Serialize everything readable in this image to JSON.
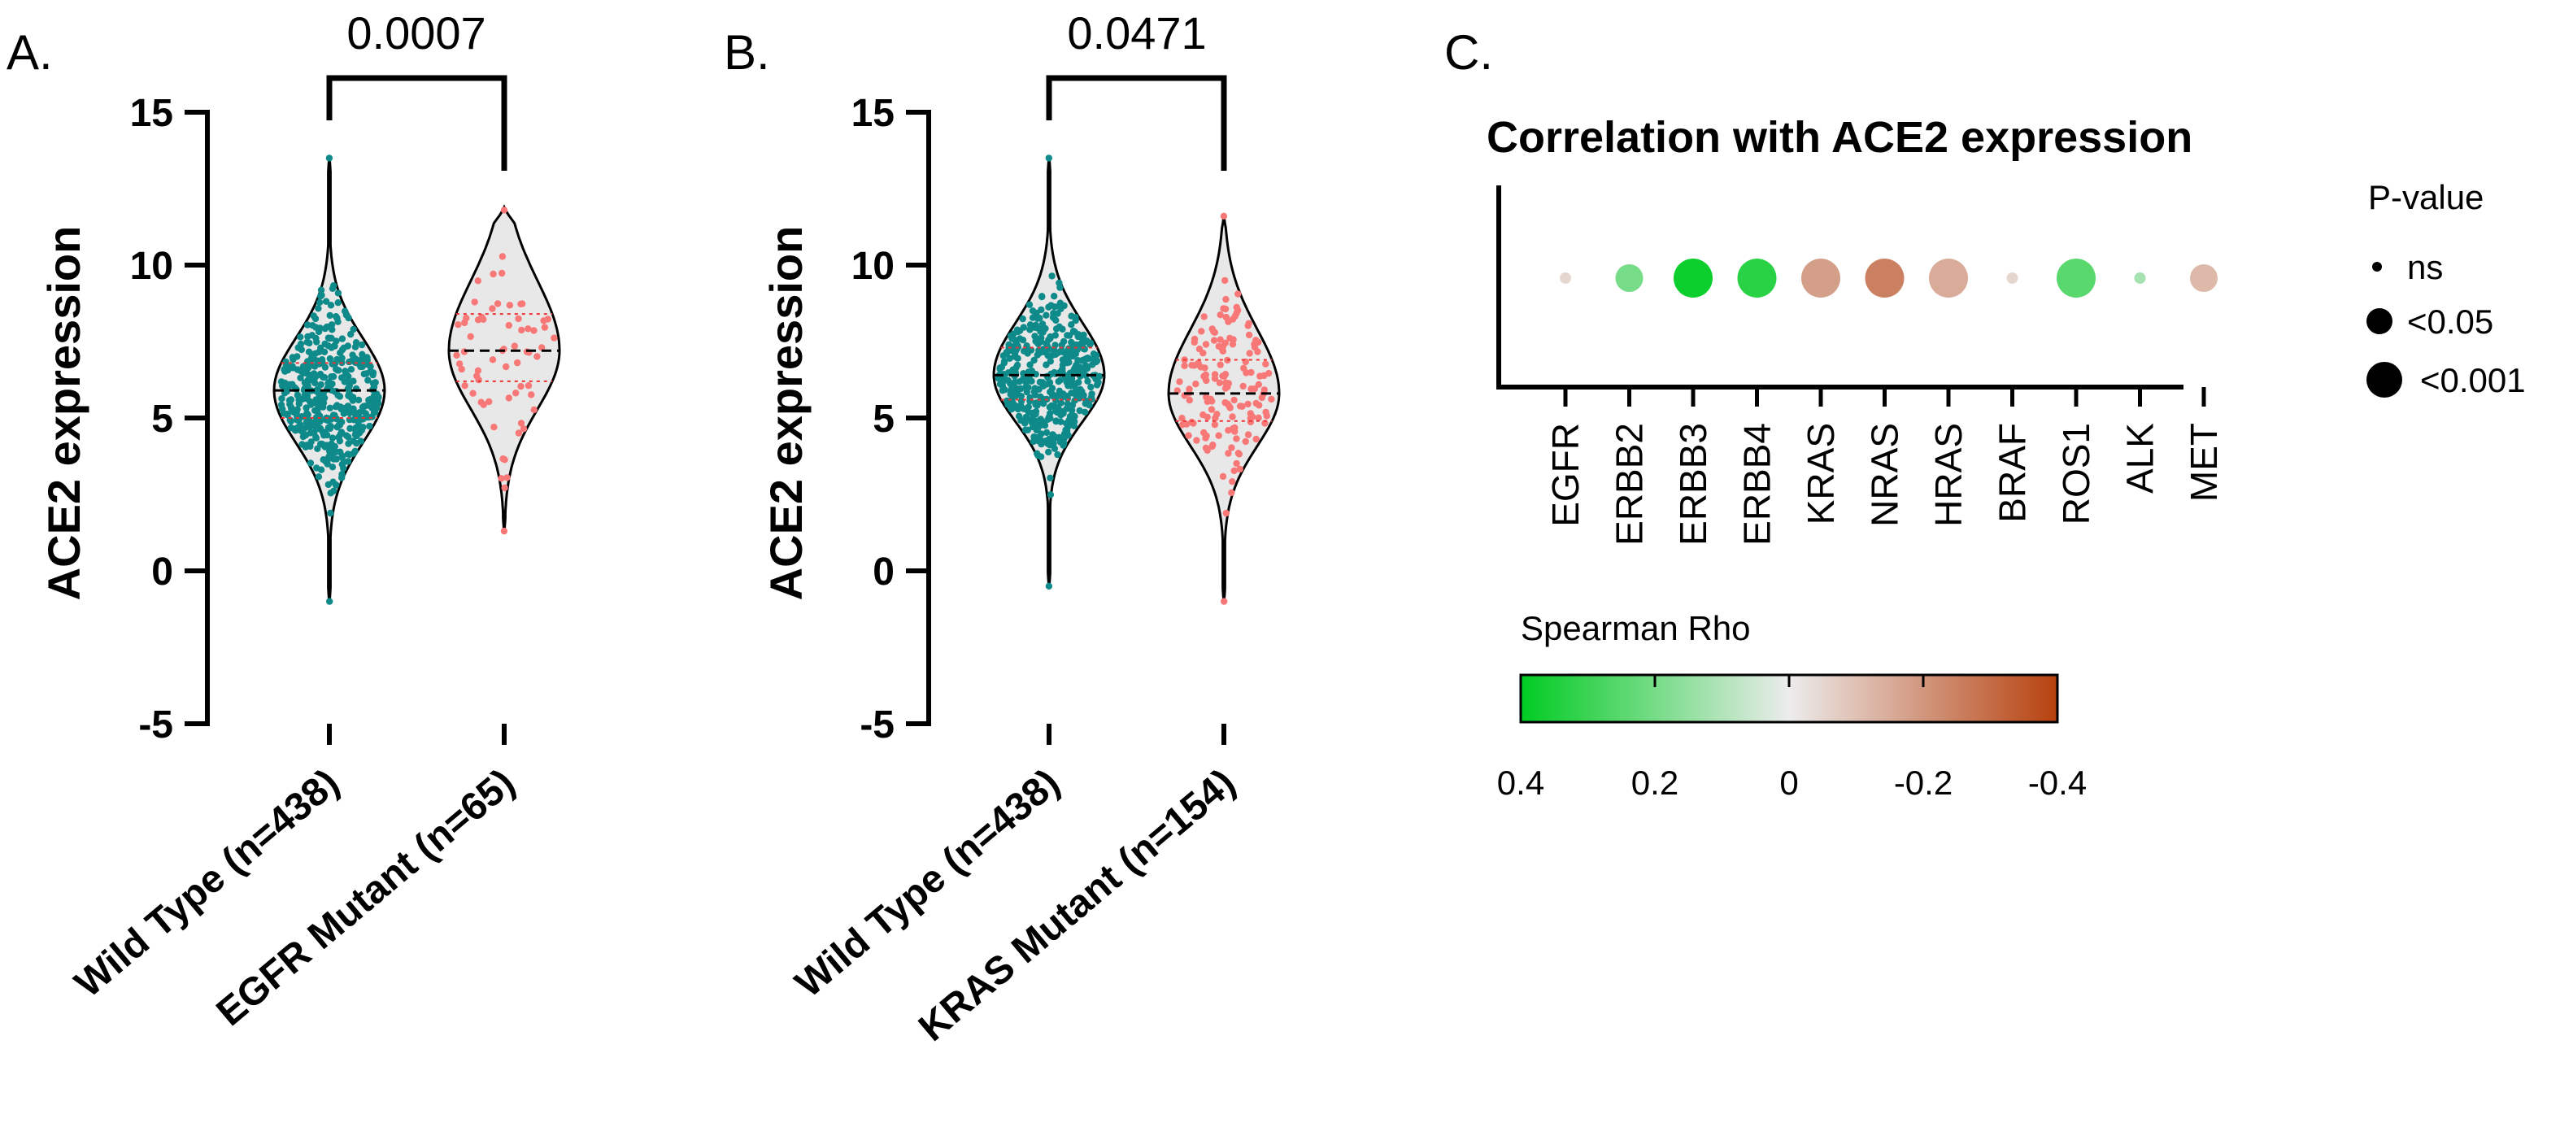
{
  "chart_data": [
    {
      "panel": "A.",
      "type": "violin",
      "ylabel": "ACE2 expression",
      "ylim": [
        -5,
        15
      ],
      "yticks": [
        15,
        10,
        5,
        0,
        -5
      ],
      "ytick_labels": [
        "15",
        "10",
        "5",
        "0",
        "-5"
      ],
      "categories": [
        "Wild Type (n=438)",
        "EGFR Mutant (n=65)"
      ],
      "groups": [
        {
          "name": "Wild Type (n=438)",
          "n": 438,
          "median": 5.9,
          "q1": 5.0,
          "q3": 6.8,
          "min": -1.1,
          "max": 13.6,
          "color": "#0e8a8a"
        },
        {
          "name": "EGFR Mutant (n=65)",
          "n": 65,
          "median": 7.2,
          "q1": 6.2,
          "q3": 8.4,
          "min": 1.2,
          "max": 11.9,
          "color": "#f87878"
        }
      ],
      "comparison_p": "0.0007"
    },
    {
      "panel": "B.",
      "type": "violin",
      "ylabel": "ACE2 expression",
      "ylim": [
        -5,
        15
      ],
      "yticks": [
        15,
        10,
        5,
        0,
        -5
      ],
      "ytick_labels": [
        "15",
        "10",
        "5",
        "0",
        "-5"
      ],
      "categories": [
        "Wild Type (n=438)",
        "KRAS Mutant (n=154)"
      ],
      "groups": [
        {
          "name": "Wild Type (n=438)",
          "n": 438,
          "median": 6.4,
          "q1": 5.6,
          "q3": 7.3,
          "min": -0.6,
          "max": 13.6,
          "color": "#0e8a8a"
        },
        {
          "name": "KRAS Mutant (n=154)",
          "n": 154,
          "median": 5.8,
          "q1": 4.9,
          "q3": 6.9,
          "min": -1.1,
          "max": 11.7,
          "color": "#f87878"
        }
      ],
      "comparison_p": "0.0471"
    },
    {
      "panel": "C.",
      "type": "bubble",
      "title": "Correlation with ACE2 expression",
      "genes": [
        "EGFR",
        "ERBB2",
        "ERBB3",
        "ERBB4",
        "KRAS",
        "NRAS",
        "HRAS",
        "BRAF",
        "ROS1",
        "ALK",
        "MET"
      ],
      "rho": [
        -0.05,
        0.2,
        0.38,
        0.33,
        -0.18,
        -0.25,
        -0.15,
        -0.05,
        0.25,
        0.12,
        -0.12
      ],
      "pvalue_class": [
        "ns",
        "<0.05",
        "<0.001",
        "<0.001",
        "<0.001",
        "<0.001",
        "<0.001",
        "ns",
        "<0.001",
        "ns",
        "<0.05"
      ],
      "size_legend": {
        "title": "P-value",
        "entries": [
          "ns",
          "<0.05",
          "<0.001"
        ]
      },
      "colorbar": {
        "title": "Spearman Rho",
        "range": [
          0.4,
          -0.4
        ],
        "tick_labels": [
          "0.4",
          "0.2",
          "0",
          "-0.2",
          "-0.4"
        ],
        "colors": [
          "#00cc22",
          "#ececec",
          "#b7410e"
        ]
      }
    }
  ]
}
